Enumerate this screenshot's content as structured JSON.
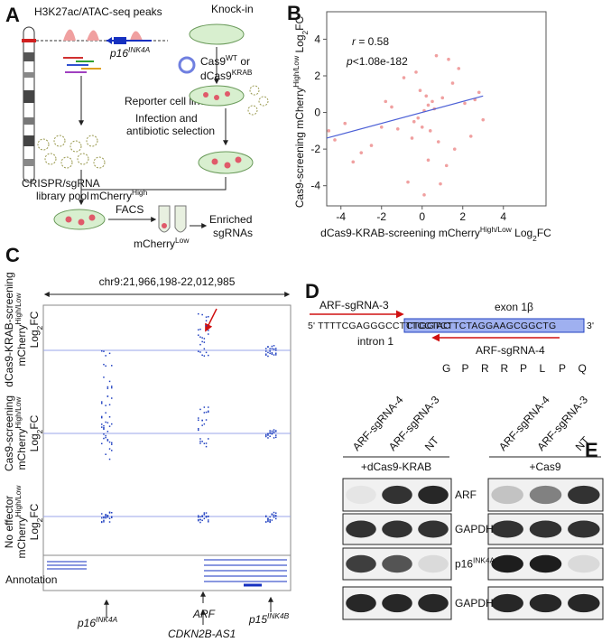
{
  "panel_labels": [
    "A",
    "B",
    "C",
    "D",
    "E"
  ],
  "panel_a": {
    "peaks_title": "H3K27ac/ATAC-seq peaks",
    "gene": [
      {
        "text": "p16"
      },
      {
        "text": "INK4A",
        "style": "sup"
      }
    ],
    "knock_in": "Knock-in",
    "cas9": [
      {
        "text": "Cas9"
      },
      {
        "text": "WT",
        "style": "sup"
      },
      {
        "text": " or"
      }
    ],
    "dcas9": [
      {
        "text": "dCas9"
      },
      {
        "text": "KRAB",
        "style": "sup"
      }
    ],
    "reporter": "Reporter cell line",
    "infection": [
      "Infection and",
      "antibiotic selection"
    ],
    "library": [
      "CRISPR/sgRNA",
      "library pool"
    ],
    "mcherry_high": [
      {
        "text": "mCherry"
      },
      {
        "text": "High",
        "style": "sup"
      }
    ],
    "facs": "FACS",
    "enriched": [
      "Enriched",
      "sgRNAs"
    ],
    "mcherry_low": [
      {
        "text": "mCherry"
      },
      {
        "text": "Low",
        "style": "sup"
      }
    ]
  },
  "chart_data": {
    "type": "scatter",
    "annotations": [
      [
        {
          "text": "r",
          "style": "italic"
        },
        {
          "text": " = 0.58"
        }
      ],
      [
        {
          "text": "p",
          "style": "italic"
        },
        {
          "text": "<1.08e-182"
        }
      ]
    ],
    "xlabel": [
      {
        "text": "dCas9-KRAB-screening mCherry"
      },
      {
        "text": "High/Low",
        "style": "sup"
      },
      {
        "text": " Log"
      },
      {
        "text": "2",
        "style": "sub"
      },
      {
        "text": "FC"
      }
    ],
    "ylabel": [
      {
        "text": "Cas9-screening mCherry"
      },
      {
        "text": "High/Low",
        "style": "sup"
      },
      {
        "text": " Log"
      },
      {
        "text": "2",
        "style": "sub"
      },
      {
        "text": "FC"
      }
    ],
    "x": [
      0.1,
      -0.2,
      0.3,
      0.5,
      -0.4,
      0.2,
      0.0,
      0.6,
      -0.1,
      0.4,
      1.0,
      1.5,
      -1.2,
      2.1,
      -2.5,
      -3.8,
      -4.3,
      2.8,
      3.0,
      1.8,
      -1.8,
      0.8,
      -0.7,
      1.2,
      -3.0,
      2.4,
      -0.9,
      0.7,
      -2.0,
      1.6,
      -4.6,
      0.3,
      -0.3,
      0.9,
      -1.5,
      2.6,
      0.1,
      -0.5,
      1.3,
      -3.4
    ],
    "values": [
      0.1,
      -0.3,
      0.4,
      0.6,
      -0.5,
      0.9,
      -0.8,
      0.2,
      1.2,
      -1.0,
      0.8,
      1.6,
      -0.9,
      0.5,
      -1.8,
      -0.6,
      -1.5,
      1.1,
      -0.4,
      2.4,
      0.6,
      -1.6,
      -3.8,
      -2.9,
      -2.2,
      -1.3,
      1.9,
      3.1,
      -0.8,
      -2.0,
      -1.0,
      -2.6,
      2.2,
      -3.9,
      0.3,
      0.7,
      -4.5,
      -1.4,
      2.9,
      -2.7
    ],
    "color": "#f0a0a0",
    "trend": {
      "x": [
        -4.7,
        3.0
      ],
      "y": [
        -1.4,
        0.9
      ],
      "color": "#4b5fd6"
    },
    "xlim": [
      -4.7,
      6.1
    ],
    "ylim": [
      -5.1,
      5.5
    ],
    "xticks": [
      -4,
      -2,
      0,
      2,
      4
    ],
    "yticks": [
      -4,
      -2,
      0,
      2,
      4
    ]
  },
  "panel_c": {
    "region": "chr9:21,966,198-22,012,985",
    "tracks": [
      [
        [
          {
            "text": "dCas9-KRAB-screening"
          }
        ],
        [
          {
            "text": "mCherry"
          },
          {
            "text": "High/Low",
            "style": "sup"
          }
        ],
        [
          {
            "text": "Log"
          },
          {
            "text": "2",
            "style": "sub"
          },
          {
            "text": "FC"
          }
        ]
      ],
      [
        [
          {
            "text": "Cas9-screening"
          }
        ],
        [
          {
            "text": "mCherry"
          },
          {
            "text": "High/Low",
            "style": "sup"
          }
        ],
        [
          {
            "text": "Log"
          },
          {
            "text": "2",
            "style": "sub"
          },
          {
            "text": "FC"
          }
        ]
      ],
      [
        [
          {
            "text": "No effector"
          }
        ],
        [
          {
            "text": "mCherry"
          },
          {
            "text": "High/Low",
            "style": "sup"
          }
        ],
        [
          {
            "text": "Log"
          },
          {
            "text": "2",
            "style": "sub"
          },
          {
            "text": "FC"
          }
        ]
      ]
    ],
    "annotation": "Annotation",
    "genes": [
      [
        {
          "text": "p16",
          "style": "italic"
        },
        {
          "text": "INK4A",
          "style": "sup-italic"
        }
      ],
      [
        {
          "text": "ARF",
          "style": "italic"
        }
      ],
      [
        {
          "text": "CDKN2B-AS1",
          "style": "italic"
        }
      ],
      [
        {
          "text": "p15",
          "style": "italic"
        },
        {
          "text": "INK4B",
          "style": "sup-italic"
        }
      ]
    ]
  },
  "panel_d": {
    "sg3": "ARF-sgRNA-3",
    "sg4": "ARF-sgRNA-4",
    "exon": "exon 1β",
    "intron": "intron 1",
    "seq_left": "5' TTTTCGAGGGCCTTTCCTAC",
    "seq_exon": "CTGGTCTTCTAGGAAGCGGCTG",
    "seq_right": "3'",
    "aa": [
      "G",
      "P",
      "R",
      "R",
      "P",
      "L",
      "P",
      "Q"
    ]
  },
  "panel_e": {
    "left": {
      "lanes": [
        "ARF-sgRNA-4",
        "ARF-sgRNA-3",
        "NT"
      ],
      "condition": "+dCas9-KRAB"
    },
    "right": {
      "lanes": [
        "ARF-sgRNA-4",
        "ARF-sgRNA-3",
        "NT"
      ],
      "condition": "+Cas9"
    },
    "rows": [
      [
        {
          "text": "ARF"
        }
      ],
      [
        {
          "text": "GAPDH"
        }
      ],
      [
        {
          "text": "p16"
        },
        {
          "text": "INK4A",
          "style": "sup"
        }
      ],
      [
        {
          "text": "GAPDH"
        }
      ]
    ]
  }
}
